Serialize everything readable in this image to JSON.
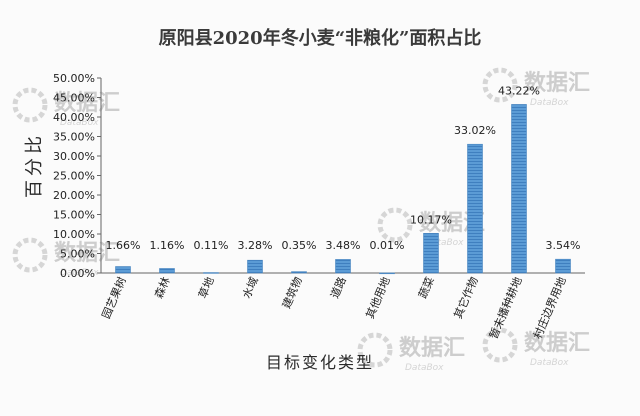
{
  "chart_data": {
    "type": "bar",
    "title": "原阳县2020年冬小麦“非粮化”面积占比",
    "xlabel": "目标变化类型",
    "ylabel": "百分比",
    "categories": [
      "园艺果树",
      "森林",
      "草地",
      "水域",
      "建筑物",
      "道路",
      "其他用地",
      "蔬菜",
      "其它作物",
      "暂未播种耕地",
      "村庄边界用地"
    ],
    "values": [
      1.66,
      1.16,
      0.11,
      3.28,
      0.35,
      3.48,
      0.01,
      10.17,
      33.02,
      43.22,
      3.54
    ],
    "data_labels": [
      "1.66%",
      "1.16%",
      "0.11%",
      "3.28%",
      "0.35%",
      "3.48%",
      "0.01%",
      "10.17%",
      "33.02%",
      "43.22%",
      "3.54%"
    ],
    "y_ticks": [
      "0.00%",
      "5.00%",
      "10.00%",
      "15.00%",
      "20.00%",
      "25.00%",
      "30.00%",
      "35.00%",
      "40.00%",
      "45.00%",
      "50.00%"
    ],
    "ylim": [
      0,
      50
    ],
    "grid": false,
    "legend": "none",
    "bar_color": "#5b9bd5"
  },
  "watermark": {
    "text": "数据汇",
    "subtext": "DataBox"
  }
}
